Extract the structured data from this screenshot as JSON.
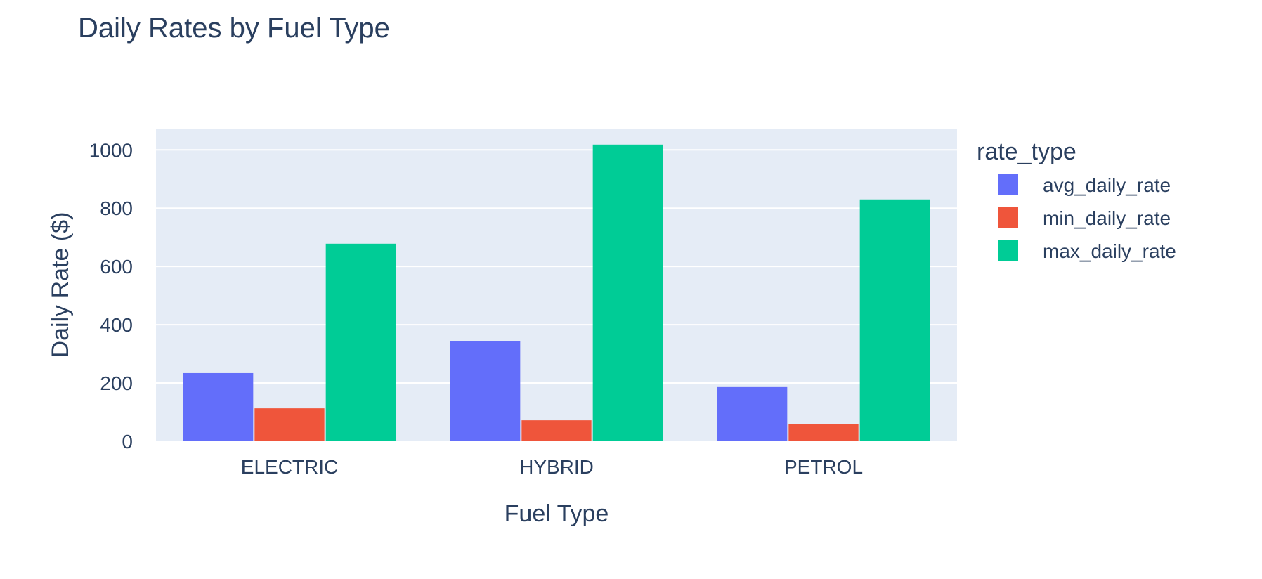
{
  "chart_data": {
    "type": "bar",
    "title": "Daily Rates by Fuel Type",
    "xlabel": "Fuel Type",
    "ylabel": "Daily Rate ($)",
    "categories": [
      "ELECTRIC",
      "HYBRID",
      "PETROL"
    ],
    "series": [
      {
        "name": "avg_daily_rate",
        "color": "#636efa",
        "values": [
          234,
          343,
          186
        ]
      },
      {
        "name": "min_daily_rate",
        "color": "#ef553b",
        "values": [
          113,
          72,
          60
        ]
      },
      {
        "name": "max_daily_rate",
        "color": "#00cc96",
        "values": [
          678,
          1018,
          830
        ]
      }
    ],
    "ylim": [
      0,
      1073
    ],
    "yticks": [
      0,
      200,
      400,
      600,
      800,
      1000
    ],
    "legend_title": "rate_type",
    "legend_position": "right",
    "grid": true,
    "plot_bgcolor": "#e5ecf6"
  }
}
